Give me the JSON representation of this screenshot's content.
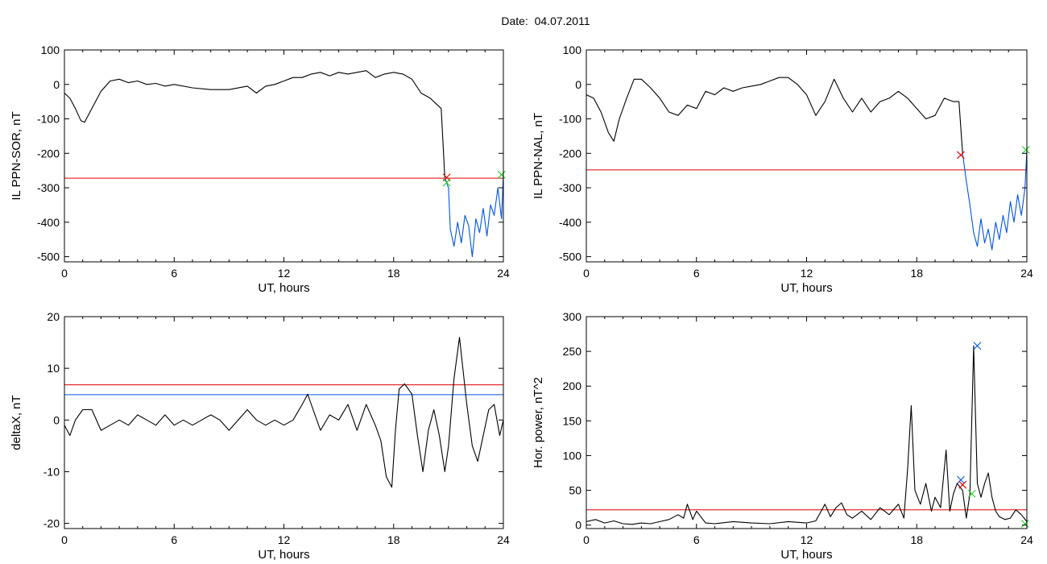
{
  "page": {
    "title": "Date:  04.07.2011"
  },
  "colors": {
    "trace": "#000000",
    "threshold": "#dd0000",
    "blue": "#0055dd",
    "green": "#22cc22"
  },
  "chart_data": [
    {
      "type": "line",
      "xlabel": "UT, hours",
      "ylabel": "IL PPN-SOR, nT",
      "xlim": [
        0,
        24
      ],
      "ylim": [
        -515,
        100
      ],
      "xticks": [
        0,
        6,
        12,
        18,
        24
      ],
      "yticks": [
        100,
        0,
        -100,
        -200,
        -300,
        -400,
        -500
      ],
      "hlines": [
        {
          "y": -272,
          "color": "red"
        }
      ],
      "series": [
        {
          "color": "black",
          "x": [
            0,
            0.3,
            0.6,
            0.9,
            1.1,
            1.3,
            1.6,
            2.0,
            2.5,
            3.0,
            3.5,
            4.0,
            4.5,
            5.0,
            5.5,
            6.0,
            7.0,
            8.0,
            9.0,
            10.0,
            10.5,
            11.0,
            11.5,
            12.0,
            12.5,
            13.0,
            13.5,
            14.0,
            14.5,
            15.0,
            15.5,
            16.0,
            16.5,
            17.0,
            17.5,
            18.0,
            18.5,
            19.0,
            19.5,
            20.0,
            20.3,
            20.6,
            20.8
          ],
          "y": [
            -25,
            -40,
            -70,
            -105,
            -110,
            -90,
            -60,
            -20,
            10,
            15,
            5,
            10,
            0,
            3,
            -5,
            0,
            -10,
            -15,
            -15,
            -5,
            -25,
            -5,
            0,
            10,
            20,
            20,
            30,
            35,
            25,
            35,
            30,
            35,
            40,
            20,
            30,
            35,
            30,
            15,
            -25,
            -40,
            -55,
            -70,
            -270
          ]
        },
        {
          "color": "blue",
          "x": [
            20.8,
            21.0,
            21.1,
            21.3,
            21.5,
            21.7,
            21.9,
            22.1,
            22.3,
            22.5,
            22.7,
            22.9,
            23.1,
            23.3,
            23.5,
            23.7,
            23.9,
            24.0
          ],
          "y": [
            -270,
            -300,
            -420,
            -470,
            -400,
            -460,
            -380,
            -410,
            -500,
            -390,
            -430,
            -360,
            -440,
            -350,
            -380,
            -300,
            -390,
            -260
          ]
        }
      ],
      "markers": [
        {
          "x": 20.9,
          "y": -270,
          "color": "red"
        },
        {
          "x": 20.9,
          "y": -285,
          "color": "green"
        },
        {
          "x": 23.9,
          "y": -262,
          "color": "green"
        }
      ]
    },
    {
      "type": "line",
      "xlabel": "UT, hours",
      "ylabel": "IL PPN-NAL, nT",
      "xlim": [
        0,
        24
      ],
      "ylim": [
        -515,
        100
      ],
      "xticks": [
        0,
        6,
        12,
        18,
        24
      ],
      "yticks": [
        100,
        0,
        -100,
        -200,
        -300,
        -400,
        -500
      ],
      "hlines": [
        {
          "y": -248,
          "color": "red"
        }
      ],
      "series": [
        {
          "color": "black",
          "x": [
            0,
            0.4,
            0.8,
            1.2,
            1.5,
            1.8,
            2.2,
            2.6,
            3.0,
            3.5,
            4.0,
            4.5,
            5.0,
            5.5,
            6.0,
            6.5,
            7.0,
            7.5,
            8.0,
            8.5,
            9.0,
            9.5,
            10.0,
            10.5,
            11.0,
            11.5,
            12.0,
            12.5,
            13.0,
            13.5,
            14.0,
            14.5,
            15.0,
            15.5,
            16.0,
            16.5,
            17.0,
            17.5,
            18.0,
            18.5,
            19.0,
            19.5,
            20.0,
            20.3,
            20.5
          ],
          "y": [
            -30,
            -40,
            -80,
            -140,
            -165,
            -100,
            -40,
            15,
            15,
            -10,
            -40,
            -80,
            -90,
            -60,
            -70,
            -20,
            -30,
            -10,
            -20,
            -10,
            -5,
            0,
            10,
            20,
            20,
            0,
            -30,
            -90,
            -50,
            15,
            -40,
            -80,
            -40,
            -80,
            -50,
            -40,
            -20,
            -40,
            -70,
            -100,
            -90,
            -40,
            -50,
            -50,
            -200
          ]
        },
        {
          "color": "blue",
          "x": [
            20.5,
            20.7,
            20.9,
            21.1,
            21.3,
            21.5,
            21.7,
            21.9,
            22.1,
            22.3,
            22.5,
            22.7,
            22.9,
            23.1,
            23.3,
            23.5,
            23.7,
            23.9,
            24.0
          ],
          "y": [
            -200,
            -280,
            -350,
            -430,
            -470,
            -390,
            -460,
            -420,
            -480,
            -400,
            -450,
            -380,
            -430,
            -340,
            -400,
            -320,
            -380,
            -300,
            -190
          ]
        }
      ],
      "markers": [
        {
          "x": 20.4,
          "y": -205,
          "color": "red"
        },
        {
          "x": 23.95,
          "y": -190,
          "color": "green"
        }
      ]
    },
    {
      "type": "line",
      "xlabel": "UT, hours",
      "ylabel": "deltaX, nT",
      "xlim": [
        0,
        24
      ],
      "ylim": [
        -21,
        20
      ],
      "xticks": [
        0,
        6,
        12,
        18,
        24
      ],
      "yticks": [
        20,
        10,
        0,
        -10,
        -20
      ],
      "hlines": [
        {
          "y": 6.8,
          "color": "red"
        },
        {
          "y": 4.9,
          "color": "blue"
        }
      ],
      "series": [
        {
          "color": "black",
          "x": [
            0,
            0.3,
            0.6,
            1.0,
            1.5,
            2.0,
            2.5,
            3.0,
            3.5,
            4.0,
            4.5,
            5.0,
            5.5,
            6.0,
            6.5,
            7.0,
            7.5,
            8.0,
            8.5,
            9.0,
            9.5,
            10.0,
            10.5,
            11.0,
            11.5,
            12.0,
            12.5,
            13.0,
            13.3,
            13.6,
            14.0,
            14.5,
            15.0,
            15.5,
            16.0,
            16.5,
            17.0,
            17.3,
            17.6,
            17.9,
            18.1,
            18.3,
            18.6,
            19.0,
            19.3,
            19.6,
            19.9,
            20.2,
            20.5,
            20.8,
            21.0,
            21.3,
            21.6,
            22.0,
            22.3,
            22.6,
            22.9,
            23.2,
            23.5,
            23.8,
            24.0
          ],
          "y": [
            -1,
            -3,
            0,
            2,
            2,
            -2,
            -1,
            0,
            -1,
            1,
            0,
            -1,
            1,
            -1,
            0,
            -1,
            0,
            1,
            0,
            -2,
            0,
            2,
            0,
            -1,
            0,
            -1,
            0,
            3,
            5,
            2,
            -2,
            1,
            0,
            3,
            -2,
            3,
            -1,
            -4,
            -11,
            -13,
            -2,
            6,
            7,
            5,
            -3,
            -10,
            -2,
            2,
            -3,
            -10,
            -5,
            8,
            16,
            3,
            -5,
            -8,
            -3,
            2,
            3,
            -3,
            0
          ]
        }
      ],
      "markers": []
    },
    {
      "type": "line",
      "xlabel": "UT, hours",
      "ylabel": "Hor. power, nT^2",
      "xlim": [
        0,
        24
      ],
      "ylim": [
        -5,
        300
      ],
      "xticks": [
        0,
        6,
        12,
        18,
        24
      ],
      "yticks": [
        300,
        250,
        200,
        150,
        100,
        50,
        0
      ],
      "hlines": [
        {
          "y": 22,
          "color": "red"
        }
      ],
      "series": [
        {
          "color": "black",
          "x": [
            0,
            0.5,
            1.0,
            1.5,
            2.0,
            2.5,
            3.0,
            3.5,
            4.0,
            4.5,
            5.0,
            5.3,
            5.5,
            5.8,
            6.0,
            6.5,
            7.0,
            8.0,
            9.0,
            10.0,
            11.0,
            12.0,
            12.5,
            13.0,
            13.3,
            13.6,
            13.9,
            14.2,
            14.5,
            15.0,
            15.5,
            16.0,
            16.5,
            17.0,
            17.3,
            17.5,
            17.7,
            17.9,
            18.2,
            18.5,
            18.8,
            19.0,
            19.3,
            19.6,
            19.8,
            20.0,
            20.2,
            20.5,
            20.7,
            20.9,
            21.1,
            21.3,
            21.5,
            21.7,
            21.9,
            22.1,
            22.3,
            22.5,
            22.8,
            23.1,
            23.4,
            23.7,
            24.0
          ],
          "y": [
            5,
            8,
            3,
            6,
            2,
            1,
            3,
            2,
            5,
            8,
            15,
            10,
            30,
            8,
            20,
            3,
            2,
            5,
            3,
            2,
            5,
            3,
            6,
            30,
            12,
            25,
            32,
            15,
            10,
            20,
            8,
            25,
            15,
            30,
            10,
            80,
            172,
            50,
            30,
            60,
            20,
            40,
            25,
            108,
            20,
            45,
            60,
            50,
            10,
            45,
            258,
            60,
            40,
            60,
            75,
            40,
            20,
            12,
            8,
            10,
            22,
            15,
            5
          ]
        }
      ],
      "markers": [
        {
          "x": 20.4,
          "y": 65,
          "color": "blue"
        },
        {
          "x": 20.5,
          "y": 58,
          "color": "red"
        },
        {
          "x": 21.0,
          "y": 45,
          "color": "green"
        },
        {
          "x": 21.3,
          "y": 258,
          "color": "blue"
        },
        {
          "x": 23.9,
          "y": 2,
          "color": "green"
        }
      ]
    }
  ]
}
